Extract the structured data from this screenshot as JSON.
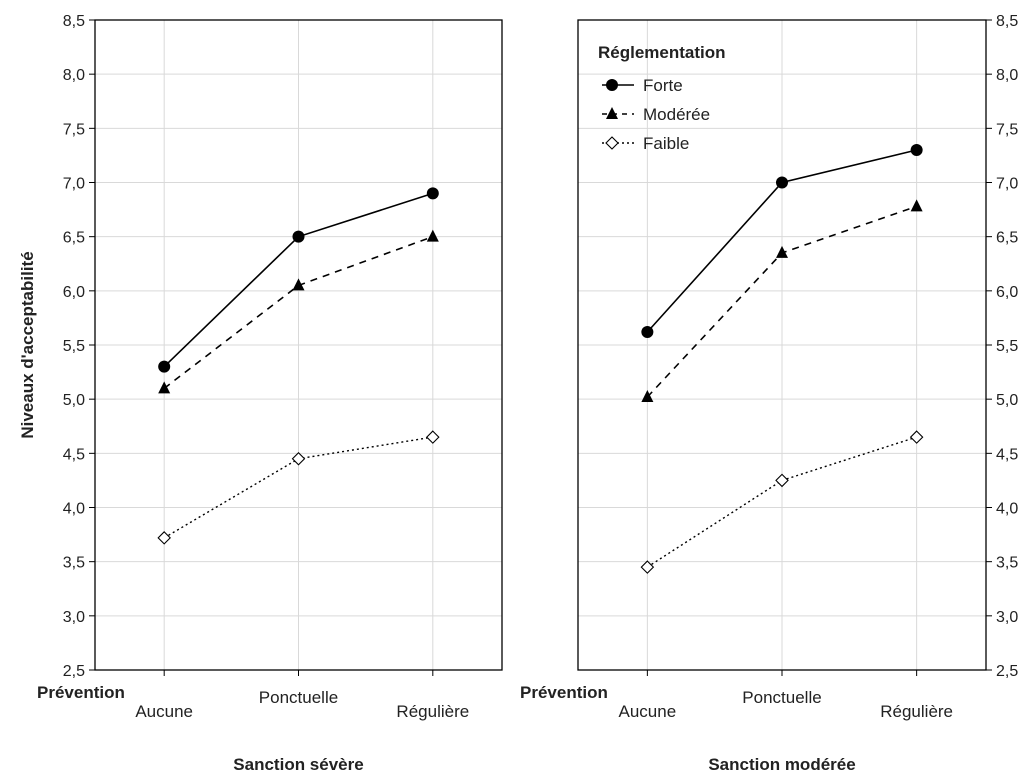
{
  "chart_data": {
    "type": "line",
    "ylabel": "Niveaux d'acceptabilité",
    "ylim": [
      2.5,
      8.5
    ],
    "ytick_labels": [
      "2,5",
      "3,0",
      "3,5",
      "4,0",
      "4,5",
      "5,0",
      "5,5",
      "6,0",
      "6,5",
      "7,0",
      "7,5",
      "8,0",
      "8,5"
    ],
    "yticks": [
      2.5,
      3.0,
      3.5,
      4.0,
      4.5,
      5.0,
      5.5,
      6.0,
      6.5,
      7.0,
      7.5,
      8.0,
      8.5
    ],
    "grid": true,
    "xaxis_title": "Prévention",
    "categories": [
      "Aucune",
      "Ponctuelle",
      "Régulière"
    ],
    "legend": {
      "title": "Réglementation",
      "placement": "top-left of right panel",
      "entries": [
        "Forte",
        "Modérée",
        "Faible"
      ]
    },
    "panels": [
      {
        "title": "Sanction sévère",
        "series": [
          {
            "name": "Forte",
            "values": [
              5.3,
              6.5,
              6.9
            ]
          },
          {
            "name": "Modérée",
            "values": [
              5.1,
              6.05,
              6.5
            ]
          },
          {
            "name": "Faible",
            "values": [
              3.72,
              4.45,
              4.65
            ]
          }
        ]
      },
      {
        "title": "Sanction modérée",
        "series": [
          {
            "name": "Forte",
            "values": [
              5.62,
              7.0,
              7.3
            ]
          },
          {
            "name": "Modérée",
            "values": [
              5.02,
              6.35,
              6.78
            ]
          },
          {
            "name": "Faible",
            "values": [
              3.45,
              4.25,
              4.65
            ]
          }
        ]
      }
    ],
    "colors": {
      "line": "#000000",
      "grid": "#d9d9d9",
      "open_marker_fill": "#ffffff"
    }
  }
}
